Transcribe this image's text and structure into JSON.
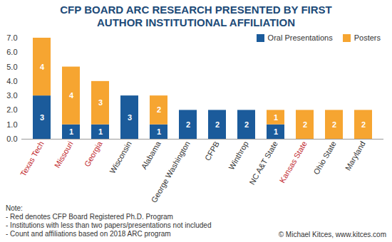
{
  "chart_data": {
    "type": "bar",
    "title": "CFP BOARD ARC RESEARCH PRESENTED BY FIRST AUTHOR INSTITUTIONAL AFFILIATION",
    "categories": [
      "Texas Tech",
      "Missouri",
      "Georgia",
      "Wisconsin",
      "Alabama",
      "George Washington",
      "CFPB",
      "Winthrop",
      "NC A&T State",
      "Kansas State",
      "Ohio State",
      "Maryland"
    ],
    "series": [
      {
        "name": "Oral Presentations",
        "color": "#1b5b9b",
        "values": [
          3,
          1,
          1,
          3,
          1,
          2,
          2,
          2,
          1,
          0,
          0,
          0
        ]
      },
      {
        "name": "Posters",
        "color": "#f6a531",
        "values": [
          4,
          4,
          3,
          0,
          2,
          0,
          0,
          0,
          1,
          2,
          2,
          2
        ]
      }
    ],
    "stacked": true,
    "data_labels": true,
    "ylim": [
      0,
      7
    ],
    "yticks": [
      0,
      1,
      2,
      3,
      4,
      5,
      6,
      7
    ],
    "grid": false,
    "legend": "top-right",
    "red_labels": [
      true,
      true,
      true,
      false,
      false,
      false,
      false,
      false,
      false,
      true,
      false,
      false
    ],
    "notes": [
      "Note:",
      "- Red denotes CFP Board Registered Ph.D. Program",
      "- Institutions with less than two papers/presentations not included",
      "- Count and affiliations based on 2018 ARC program"
    ],
    "source": "© Michael Kitces, www.kitces.com"
  }
}
